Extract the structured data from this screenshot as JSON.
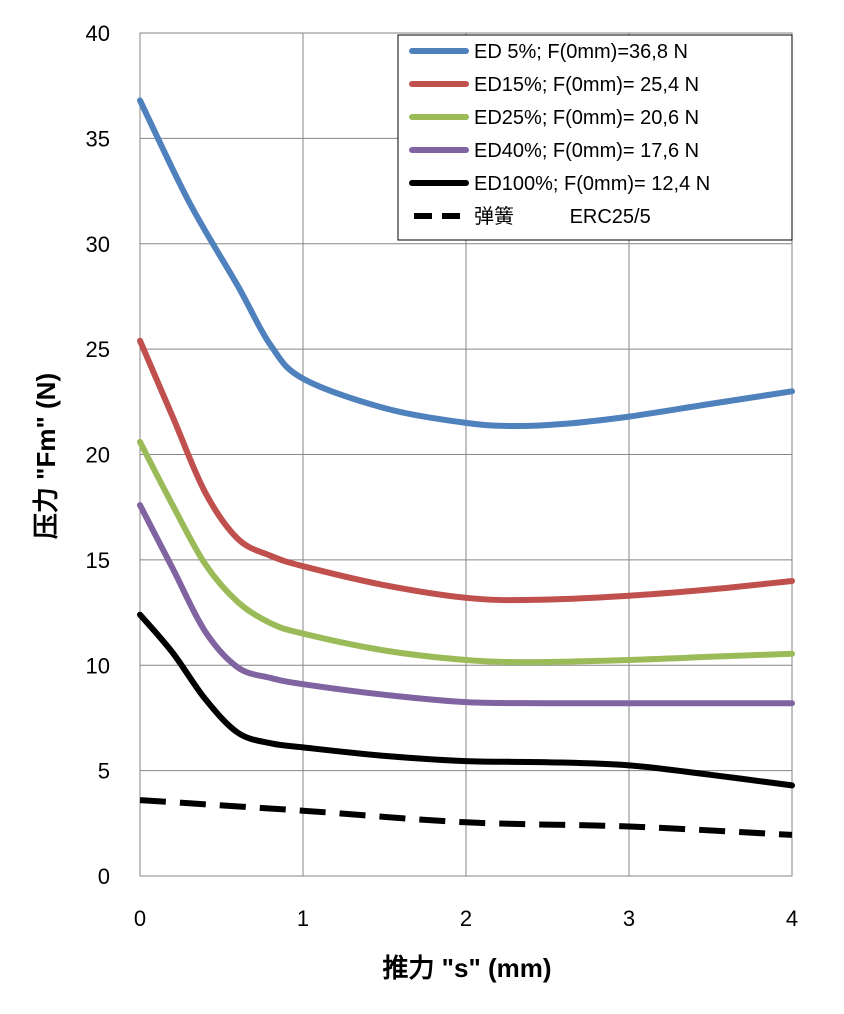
{
  "chart_data": {
    "type": "line",
    "xlabel": "推力 \"s\" (mm)",
    "ylabel": "压力 \"Fm\" (N)",
    "xlim": [
      0,
      4
    ],
    "ylim": [
      0,
      40
    ],
    "x_ticks": [
      0,
      1,
      2,
      3,
      4
    ],
    "y_ticks": [
      0,
      5,
      10,
      15,
      20,
      25,
      30,
      35,
      40
    ],
    "grid": true,
    "legend_position": "top-right",
    "series": [
      {
        "name": "ED 5%; F(0mm)=36,8 N",
        "color": "#4F81BD",
        "dash": "solid",
        "x": [
          0,
          0.3,
          0.6,
          0.8,
          1.0,
          1.5,
          2.0,
          2.3,
          2.6,
          3.0,
          3.5,
          4.0
        ],
        "y": [
          36.8,
          32.0,
          28.0,
          25.2,
          23.6,
          22.2,
          21.5,
          21.35,
          21.45,
          21.8,
          22.4,
          23.0
        ]
      },
      {
        "name": "ED15%; F(0mm)= 25,4 N",
        "color": "#C0504D",
        "dash": "solid",
        "x": [
          0,
          0.2,
          0.4,
          0.6,
          0.8,
          1.0,
          1.5,
          2.0,
          2.4,
          3.0,
          3.5,
          4.0
        ],
        "y": [
          25.4,
          21.8,
          18.2,
          16.0,
          15.2,
          14.7,
          13.8,
          13.2,
          13.1,
          13.3,
          13.6,
          14.0
        ]
      },
      {
        "name": "ED25%; F(0mm)= 20,6 N",
        "color": "#9BBB59",
        "dash": "solid",
        "x": [
          0,
          0.2,
          0.4,
          0.6,
          0.8,
          1.0,
          1.5,
          2.0,
          2.4,
          3.0,
          3.5,
          4.0
        ],
        "y": [
          20.6,
          17.6,
          14.8,
          13.0,
          12.0,
          11.5,
          10.7,
          10.25,
          10.15,
          10.25,
          10.4,
          10.55
        ]
      },
      {
        "name": "ED40%; F(0mm)= 17,6 N",
        "color": "#8064A2",
        "dash": "solid",
        "x": [
          0,
          0.2,
          0.4,
          0.6,
          0.8,
          1.0,
          1.5,
          2.0,
          2.5,
          3.0,
          3.5,
          4.0
        ],
        "y": [
          17.6,
          14.6,
          11.6,
          9.9,
          9.4,
          9.1,
          8.6,
          8.25,
          8.2,
          8.2,
          8.2,
          8.2
        ]
      },
      {
        "name": "ED100%; F(0mm)= 12,4 N",
        "color": "#000000",
        "dash": "solid",
        "x": [
          0,
          0.2,
          0.4,
          0.6,
          0.8,
          1.0,
          1.5,
          2.0,
          2.5,
          3.0,
          3.5,
          4.0
        ],
        "y": [
          12.4,
          10.6,
          8.4,
          6.8,
          6.3,
          6.1,
          5.7,
          5.45,
          5.4,
          5.25,
          4.8,
          4.3
        ]
      },
      {
        "name": "弹簧 ERC25/5",
        "color": "#000000",
        "dash": "dashed",
        "x": [
          0,
          1.0,
          2.0,
          3.0,
          4.0
        ],
        "y": [
          3.6,
          3.1,
          2.55,
          2.35,
          1.95
        ]
      }
    ]
  }
}
